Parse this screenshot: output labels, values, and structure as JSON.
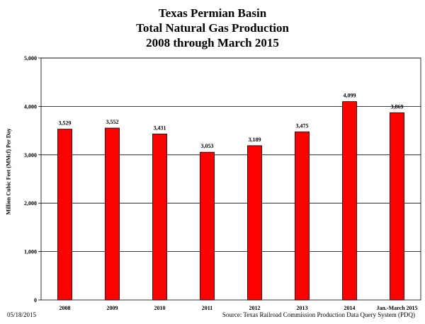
{
  "chart_data": {
    "type": "bar",
    "title": [
      "Texas Permian Basin",
      "Total Natural Gas Production",
      "2008 through March 2015"
    ],
    "ylabel": "Million  Cubic Feet (MMcf) Per Day",
    "xlabel": "",
    "categories": [
      "2008",
      "2009",
      "2010",
      "2011",
      "2012",
      "2013",
      "2014",
      "Jan.-March 2015"
    ],
    "values": [
      3529,
      3552,
      3431,
      3053,
      3189,
      3475,
      4099,
      3869
    ],
    "value_labels": [
      "3,529",
      "3,552",
      "3,431",
      "3,053",
      "3,189",
      "3,475",
      "4,099",
      "3,869"
    ],
    "ylim": [
      0,
      5000
    ],
    "yticks": [
      0,
      1000,
      2000,
      3000,
      4000,
      5000
    ],
    "ytick_labels": [
      "0",
      "1,000",
      "2,000",
      "3,000",
      "4,000",
      "5,000"
    ],
    "grid": "horizontal",
    "bar_color": "#ff0000",
    "bar_edge_color": "#000000"
  },
  "footer": {
    "date": "05/18/2015",
    "source": "Source: Texas Railroad Commission Production Data Query System (PDQ)"
  }
}
